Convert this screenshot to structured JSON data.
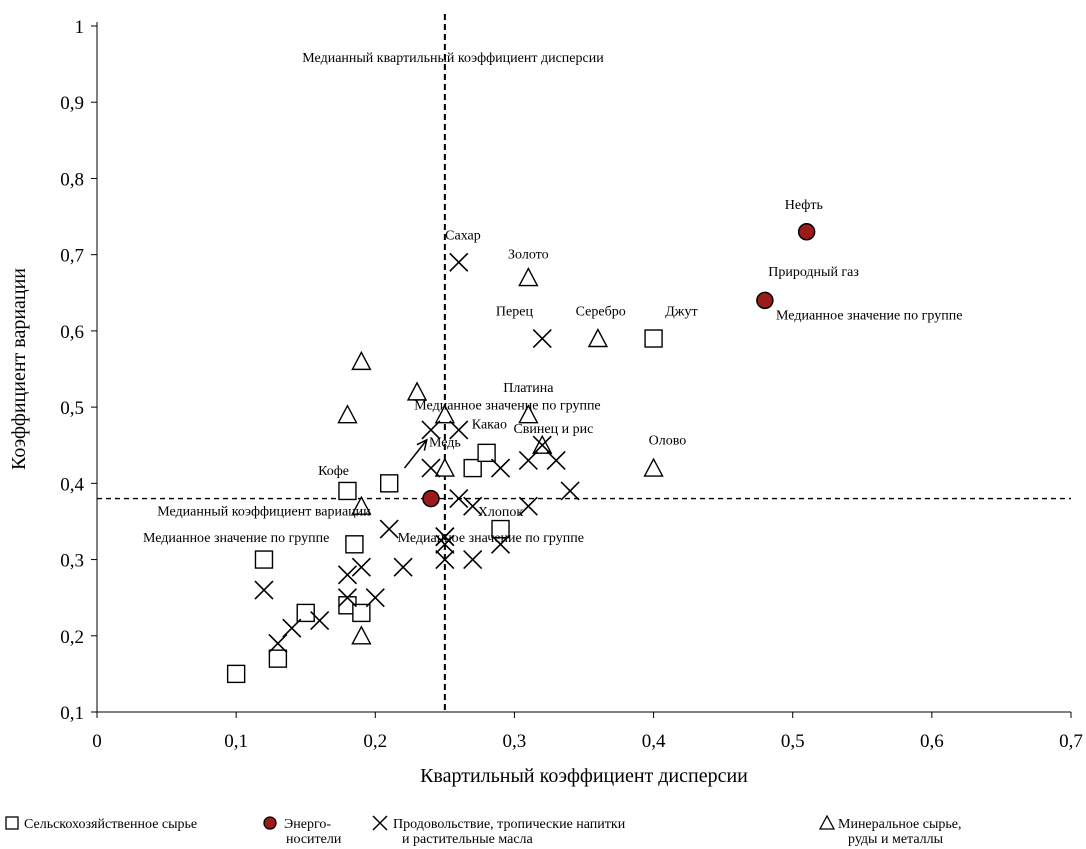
{
  "chart_data": {
    "type": "scatter",
    "title": "",
    "xlabel": "Квартильный коэффициент дисперсии",
    "ylabel": "Коэффициент вариации",
    "xlim": [
      0,
      0.7
    ],
    "ylim": [
      0.1,
      1
    ],
    "x_ticks": [
      "0",
      "0,1",
      "0,2",
      "0,3",
      "0,4",
      "0,5",
      "0,6",
      "0,7"
    ],
    "y_ticks": [
      "0,1",
      "0,2",
      "0,3",
      "0,4",
      "0,5",
      "0,6",
      "0,7",
      "0,8",
      "0,9",
      "1"
    ],
    "grid": false,
    "legend_position": "bottom",
    "reference_lines": {
      "vertical_x": 0.25,
      "horizontal_y": 0.38,
      "vertical_label": "Медианный квартильный коэффициент дисперсии",
      "horizontal_label": "Медианный коэффициент вариации"
    },
    "series": [
      {
        "name": "Сельскохозяйственное сырье",
        "marker": "square",
        "points": [
          [
            0.1,
            0.15
          ],
          [
            0.13,
            0.17
          ],
          [
            0.12,
            0.3
          ],
          [
            0.15,
            0.23
          ],
          [
            0.18,
            0.24
          ],
          [
            0.19,
            0.23
          ],
          [
            0.18,
            0.39
          ],
          [
            0.185,
            0.32
          ],
          [
            0.21,
            0.4
          ],
          [
            0.27,
            0.42
          ],
          [
            0.28,
            0.44
          ],
          [
            0.29,
            0.34
          ],
          [
            0.4,
            0.59
          ]
        ]
      },
      {
        "name": "Энерго-носители",
        "marker": "circle",
        "points": [
          [
            0.24,
            0.38
          ],
          [
            0.48,
            0.64
          ],
          [
            0.51,
            0.73
          ]
        ]
      },
      {
        "name": "Продовольствие, тропические напитки и растительные масла",
        "marker": "x",
        "points": [
          [
            0.12,
            0.26
          ],
          [
            0.13,
            0.19
          ],
          [
            0.14,
            0.21
          ],
          [
            0.16,
            0.22
          ],
          [
            0.18,
            0.25
          ],
          [
            0.18,
            0.28
          ],
          [
            0.19,
            0.29
          ],
          [
            0.2,
            0.25
          ],
          [
            0.21,
            0.34
          ],
          [
            0.22,
            0.29
          ],
          [
            0.24,
            0.42
          ],
          [
            0.24,
            0.47
          ],
          [
            0.25,
            0.3
          ],
          [
            0.25,
            0.32
          ],
          [
            0.25,
            0.33
          ],
          [
            0.25,
            0.33
          ],
          [
            0.26,
            0.38
          ],
          [
            0.26,
            0.47
          ],
          [
            0.26,
            0.69
          ],
          [
            0.27,
            0.3
          ],
          [
            0.27,
            0.37
          ],
          [
            0.29,
            0.32
          ],
          [
            0.29,
            0.42
          ],
          [
            0.31,
            0.37
          ],
          [
            0.31,
            0.43
          ],
          [
            0.32,
            0.45
          ],
          [
            0.32,
            0.59
          ],
          [
            0.33,
            0.43
          ],
          [
            0.34,
            0.39
          ]
        ]
      },
      {
        "name": "Минеральное сырье, руды и металлы",
        "marker": "triangle",
        "points": [
          [
            0.18,
            0.49
          ],
          [
            0.19,
            0.56
          ],
          [
            0.19,
            0.37
          ],
          [
            0.19,
            0.2
          ],
          [
            0.23,
            0.52
          ],
          [
            0.25,
            0.49
          ],
          [
            0.25,
            0.42
          ],
          [
            0.31,
            0.67
          ],
          [
            0.31,
            0.49
          ],
          [
            0.32,
            0.45
          ],
          [
            0.36,
            0.59
          ],
          [
            0.4,
            0.42
          ]
        ]
      }
    ],
    "annotations": [
      {
        "text": "Сахар",
        "x": 0.263,
        "y": 0.72
      },
      {
        "text": "Золото",
        "x": 0.31,
        "y": 0.695
      },
      {
        "text": "Перец",
        "x": 0.3,
        "y": 0.62
      },
      {
        "text": "Серебро",
        "x": 0.362,
        "y": 0.62
      },
      {
        "text": "Джут",
        "x": 0.42,
        "y": 0.62
      },
      {
        "text": "Нефть",
        "x": 0.508,
        "y": 0.76
      },
      {
        "text": "Природный газ",
        "x": 0.515,
        "y": 0.672
      },
      {
        "text": "Медианное значение по группе",
        "x": 0.555,
        "y": 0.615
      },
      {
        "text": "Платина",
        "x": 0.31,
        "y": 0.52
      },
      {
        "text": "Медианное значение по группе",
        "x": 0.295,
        "y": 0.497
      },
      {
        "text": "Какао",
        "x": 0.282,
        "y": 0.472
      },
      {
        "text": "Свинец и рис",
        "x": 0.328,
        "y": 0.466
      },
      {
        "text": "Олово",
        "x": 0.41,
        "y": 0.451
      },
      {
        "text": "Медь",
        "x": 0.25,
        "y": 0.448
      },
      {
        "text": "Кофе",
        "x": 0.17,
        "y": 0.411
      },
      {
        "text": "Медианный коэффициент вариации",
        "x": 0.12,
        "y": 0.358
      },
      {
        "text": "Хлопок",
        "x": 0.29,
        "y": 0.357
      },
      {
        "text": "Медианное значение по группе",
        "x": 0.1,
        "y": 0.323
      },
      {
        "text": "Медианное значение по группе",
        "x": 0.283,
        "y": 0.323
      }
    ],
    "arrow": {
      "from": [
        0.221,
        0.42
      ],
      "to": [
        0.237,
        0.457
      ]
    }
  },
  "legend": {
    "items": [
      {
        "marker": "square",
        "label_lines": [
          "Сельскохозяйственное сырье"
        ]
      },
      {
        "marker": "circle",
        "label_lines": [
          "Энерго-",
          "носители"
        ]
      },
      {
        "marker": "x",
        "label_lines": [
          "Продовольствие, тропические напитки",
          "и растительные масла"
        ]
      },
      {
        "marker": "triangle",
        "label_lines": [
          "Минеральное сырье,",
          "руды и металлы"
        ]
      }
    ]
  },
  "colors": {
    "axis": "#000000",
    "marker_stroke": "#000000",
    "energy_fill": "#9b1b1b",
    "energy_stroke": "#000000",
    "background": "#ffffff"
  }
}
